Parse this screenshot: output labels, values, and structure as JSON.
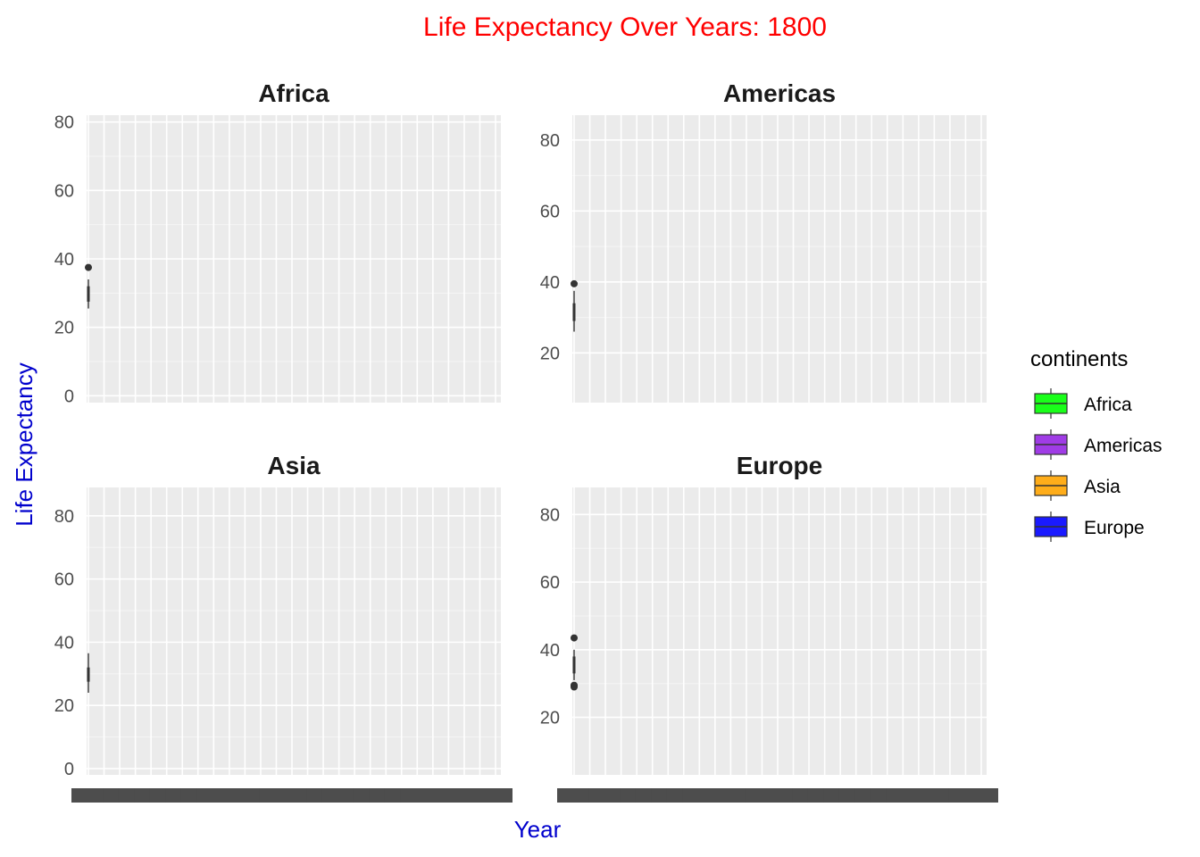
{
  "chart_data": {
    "type": "box",
    "title": "Life Expectancy Over Years: 1800",
    "xlabel": "Year",
    "ylabel": "Life Expectancy",
    "grid": true,
    "legend_position": "right",
    "legend": {
      "title": "continents",
      "entries": [
        {
          "name": "Africa",
          "color": "#1aff1a"
        },
        {
          "name": "Americas",
          "color": "#a03ce6"
        },
        {
          "name": "Asia",
          "color": "#ffad1a"
        },
        {
          "name": "Europe",
          "color": "#1a1aff"
        }
      ]
    },
    "x_ticks_count": 27,
    "panels": [
      {
        "name": "Africa",
        "ylim": [
          -2,
          82
        ],
        "yticks": [
          0,
          20,
          40,
          60,
          80
        ],
        "box": {
          "year": 1800,
          "min": 25.5,
          "q1": 27.5,
          "median": 30,
          "q3": 32,
          "max": 34,
          "outliers": [
            37.5
          ]
        }
      },
      {
        "name": "Americas",
        "ylim": [
          6,
          87
        ],
        "yticks": [
          20,
          40,
          60,
          80
        ],
        "box": {
          "year": 1800,
          "min": 26,
          "q1": 29,
          "median": 31.5,
          "q3": 34,
          "max": 37.5,
          "outliers": [
            39.5
          ]
        }
      },
      {
        "name": "Asia",
        "ylim": [
          -2,
          89
        ],
        "yticks": [
          0,
          20,
          40,
          60,
          80
        ],
        "box": {
          "year": 1800,
          "min": 24,
          "q1": 27.5,
          "median": 30,
          "q3": 32,
          "max": 36.5,
          "outliers": []
        }
      },
      {
        "name": "Europe",
        "ylim": [
          3,
          88
        ],
        "yticks": [
          20,
          40,
          60,
          80
        ],
        "box": {
          "year": 1800,
          "min": 31,
          "q1": 33,
          "median": 35.5,
          "q3": 38,
          "max": 40,
          "outliers": [
            43.5,
            29.5,
            29,
            29.3
          ]
        }
      }
    ]
  }
}
